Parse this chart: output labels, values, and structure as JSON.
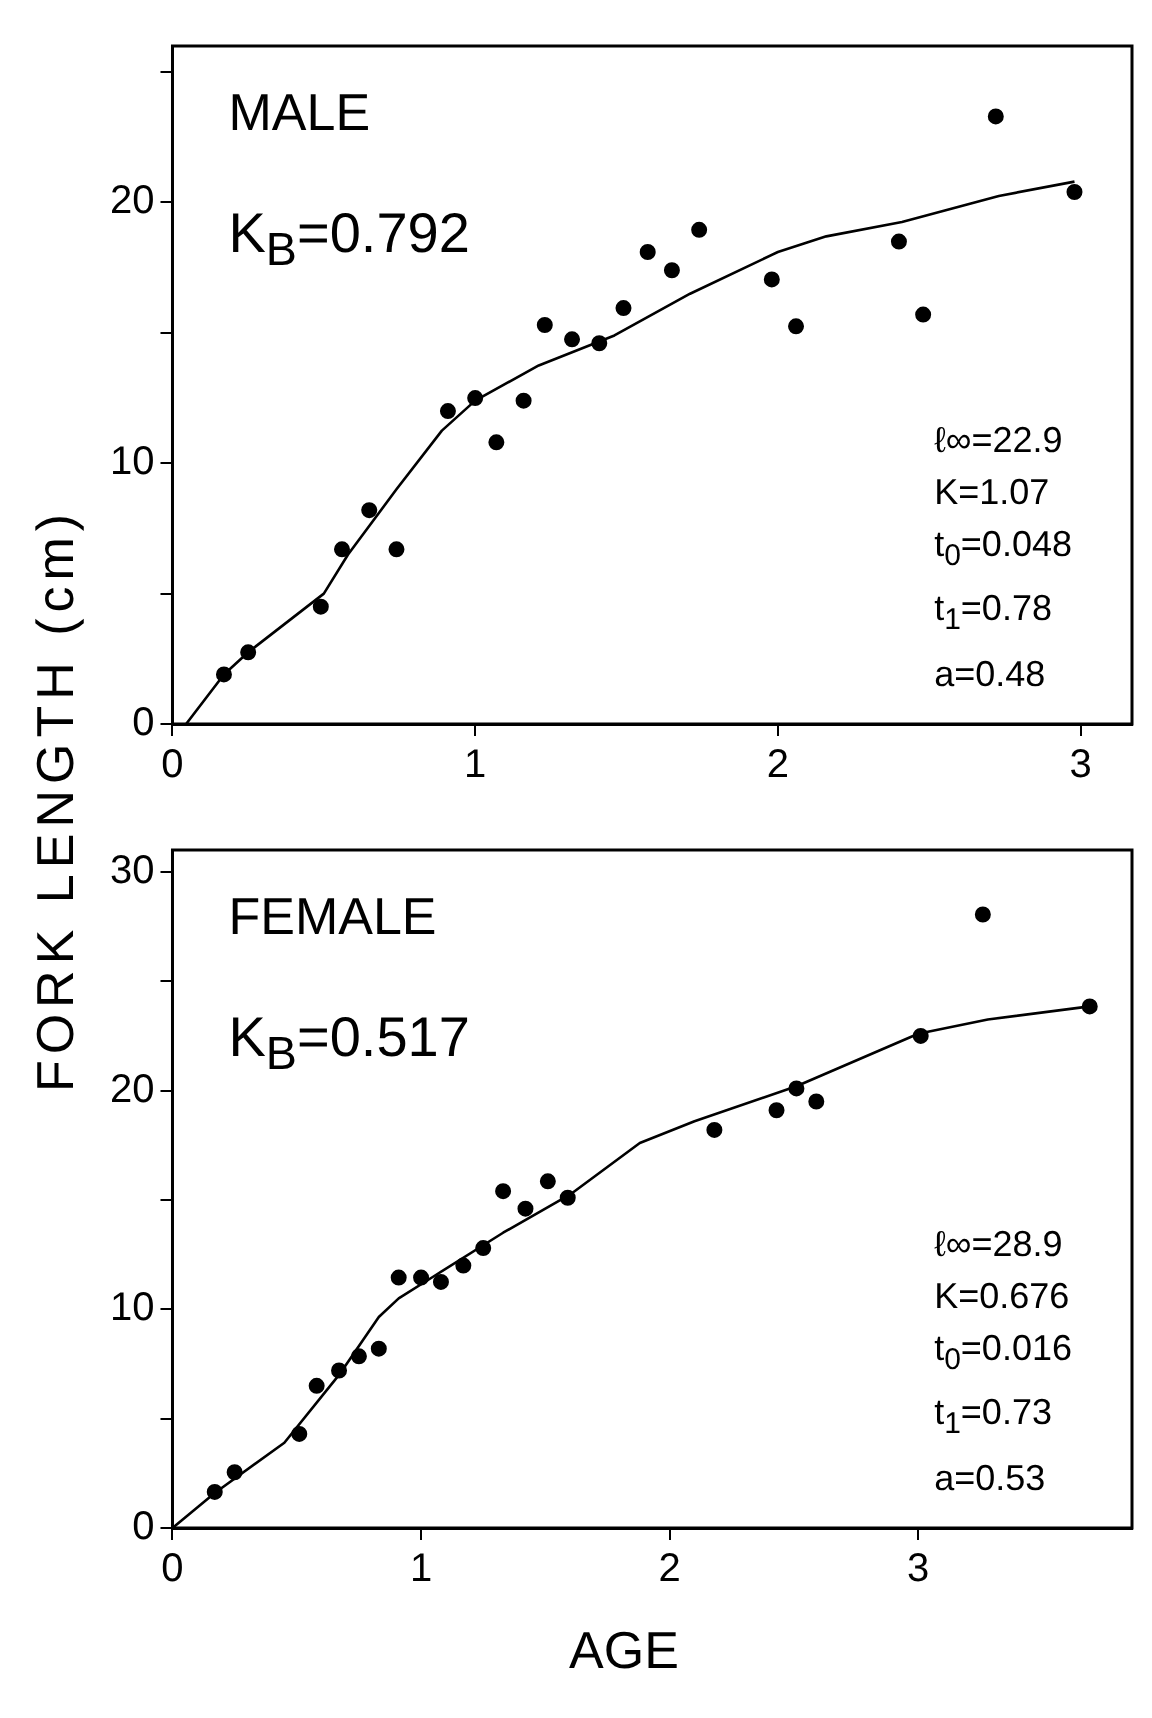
{
  "chart_data": [
    {
      "type": "scatter",
      "ylabel": "FORK LENGTH (cm)",
      "xlim": [
        0,
        3.17
      ],
      "xticks": [
        0,
        1,
        2,
        3
      ],
      "ylim": [
        0,
        26
      ],
      "yticks": [
        0,
        {
          "value": 5,
          "label": null
        },
        10,
        {
          "value": 15,
          "label": null
        },
        20,
        {
          "value": 25,
          "label": null
        }
      ],
      "grid": false,
      "legend": false,
      "annotations": [
        "MALE",
        "K$_{B}$=0.792",
        "ℓ∞=22.9",
        "K=1.07",
        "t$_{0}$=0.048",
        "t$_{1}$=0.78",
        "a=0.48"
      ],
      "series": [
        {
          "marker": "circle",
          "color": "#000000",
          "x": [
            0.17,
            0.25,
            0.49,
            0.56,
            0.65,
            0.74,
            0.91,
            1.0,
            1.07,
            1.16,
            1.23,
            1.32,
            1.41,
            1.49,
            1.57,
            1.65,
            1.74,
            1.98,
            2.06,
            2.4,
            2.48,
            2.72,
            2.98
          ],
          "values": [
            1.9,
            2.75,
            4.5,
            6.7,
            8.2,
            6.7,
            12.0,
            12.5,
            10.8,
            12.4,
            15.3,
            14.75,
            14.6,
            15.95,
            18.1,
            17.4,
            18.95,
            17.05,
            15.25,
            18.5,
            15.7,
            23.3,
            20.4
          ]
        },
        {
          "type": "line",
          "marker": "none",
          "line_style": "solid",
          "color": "#000000",
          "x": [
            0.045,
            0.17,
            0.25,
            0.5,
            0.58,
            0.74,
            0.89,
            1.0,
            1.21,
            1.46,
            1.71,
            2.0,
            2.16,
            2.41,
            2.73,
            2.98
          ],
          "values": [
            0,
            1.9,
            2.75,
            5,
            6.5,
            9,
            11.25,
            12.4,
            13.75,
            14.9,
            16.5,
            18.1,
            18.7,
            19.25,
            20.25,
            20.8
          ]
        }
      ]
    },
    {
      "type": "scatter",
      "xlabel": "AGE",
      "xlim": [
        0,
        3.86
      ],
      "xticks": [
        0,
        1,
        2,
        3
      ],
      "ylim": [
        0,
        31
      ],
      "yticks": [
        0,
        {
          "value": 5,
          "label": null
        },
        10,
        {
          "value": 15,
          "label": null
        },
        20,
        {
          "value": 25,
          "label": null
        },
        30
      ],
      "grid": false,
      "legend": false,
      "annotations": [
        "FEMALE",
        "K$_{B}$=0.517",
        "ℓ∞=28.9",
        "K=0.676",
        "t$_{0}$=0.016",
        "t$_{1}$=0.73",
        "a=0.53"
      ],
      "series": [
        {
          "marker": "circle",
          "color": "#000000",
          "x": [
            0.17,
            0.25,
            0.51,
            0.58,
            0.67,
            0.75,
            0.83,
            0.91,
            1.0,
            1.08,
            1.17,
            1.25,
            1.33,
            1.42,
            1.51,
            1.59,
            2.18,
            2.43,
            2.51,
            2.59,
            3.01,
            3.26,
            3.69
          ],
          "values": [
            1.65,
            2.55,
            4.3,
            6.5,
            7.2,
            7.85,
            8.2,
            11.45,
            11.45,
            11.25,
            12.0,
            12.8,
            15.4,
            14.6,
            15.85,
            15.1,
            18.2,
            19.1,
            20.1,
            19.5,
            22.5,
            28.05,
            23.85
          ]
        },
        {
          "type": "line",
          "marker": "none",
          "line_style": "solid",
          "color": "#000000",
          "x": [
            0,
            0.17,
            0.45,
            0.67,
            0.83,
            0.91,
            1.05,
            1.33,
            1.6,
            1.88,
            2.1,
            2.51,
            3.0,
            3.28,
            3.69
          ],
          "values": [
            0,
            1.6,
            3.9,
            7.0,
            9.65,
            10.5,
            11.5,
            13.5,
            15.25,
            17.6,
            18.6,
            20.2,
            22.6,
            23.25,
            23.85
          ]
        }
      ]
    }
  ]
}
